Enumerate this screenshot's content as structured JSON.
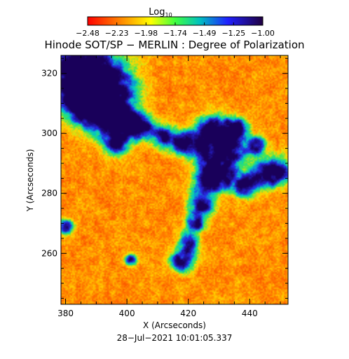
{
  "colorbar": {
    "label": "Log",
    "label_sub": "10",
    "ticks": [
      "−2.48",
      "−2.23",
      "−1.98",
      "−1.74",
      "−1.49",
      "−1.25",
      "−1.00"
    ]
  },
  "footer": {
    "timestamp": "28−Jul−2021 10:01:05.337"
  },
  "colors": {
    "low": "#ff1a00",
    "mid_low": "#ff8c00",
    "mid": "#ffff00",
    "mid_high": "#00e070",
    "high": "#2020d0",
    "max": "#200060"
  },
  "chart_data": {
    "type": "heatmap",
    "title": "Hinode SOT/SP − MERLIN : Degree of Polarization",
    "xlabel": "X (Arcseconds)",
    "ylabel": "Y (Arcseconds)",
    "xlim": [
      378.5,
      452.5
    ],
    "ylim": [
      243,
      326
    ],
    "xticks": [
      380,
      400,
      420,
      440
    ],
    "yticks": [
      260,
      280,
      300,
      320
    ],
    "colorbar_range": [
      -2.48,
      -1.0
    ],
    "colorbar_units": "Log10",
    "grid": false
  }
}
